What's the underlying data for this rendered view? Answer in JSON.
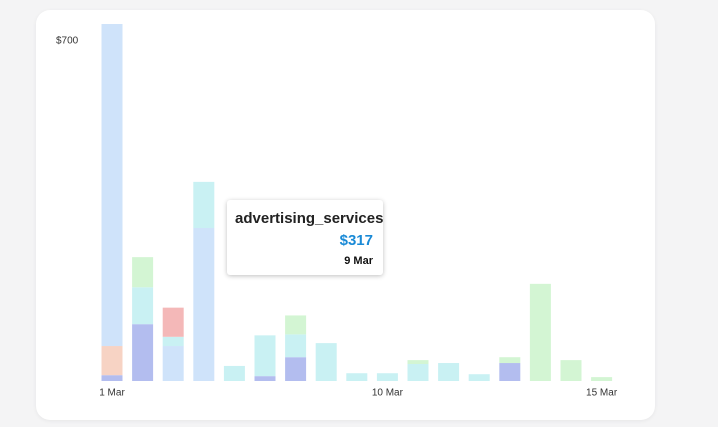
{
  "chart_data": {
    "type": "stacked_bar",
    "categories": [
      "1 Mar",
      null,
      null,
      null,
      null,
      null,
      null,
      null,
      null,
      "10 Mar",
      null,
      null,
      null,
      null,
      null,
      null,
      "15 Mar"
    ],
    "series": [
      {
        "color": "#b3bdef",
        "values": [
          12,
          117,
          0,
          0,
          0,
          10,
          49,
          0,
          0,
          0,
          0,
          0,
          0,
          37,
          0,
          0,
          0
        ]
      },
      {
        "color": "#f7d3c4",
        "values": [
          60,
          0,
          0,
          0,
          0,
          0,
          0,
          0,
          0,
          0,
          0,
          0,
          0,
          0,
          0,
          0,
          0
        ]
      },
      {
        "color": "#cfe3fa",
        "values": [
          663,
          0,
          72,
          315,
          0,
          0,
          0,
          0,
          0,
          0,
          0,
          0,
          0,
          0,
          0,
          0,
          0
        ]
      },
      {
        "color": "#c9f1f3",
        "values": [
          0,
          76,
          19,
          95,
          31,
          84,
          47,
          78,
          16,
          16,
          35,
          37,
          14,
          0,
          0,
          0,
          0
        ]
      },
      {
        "color": "#f4b8b8",
        "values": [
          0,
          0,
          60,
          0,
          0,
          0,
          0,
          0,
          0,
          0,
          0,
          0,
          0,
          0,
          0,
          0,
          0
        ]
      },
      {
        "color": "#d3f5d3",
        "values": [
          0,
          62,
          0,
          0,
          0,
          0,
          39,
          0,
          0,
          0,
          8,
          0,
          0,
          12,
          200,
          43,
          8
        ]
      }
    ],
    "ylim": [
      0,
      700
    ],
    "yticks": [
      {
        "value": 700,
        "label": "$700"
      }
    ],
    "tooltip": {
      "name": "advertising_services",
      "value": "$317",
      "date": "9 Mar"
    }
  }
}
